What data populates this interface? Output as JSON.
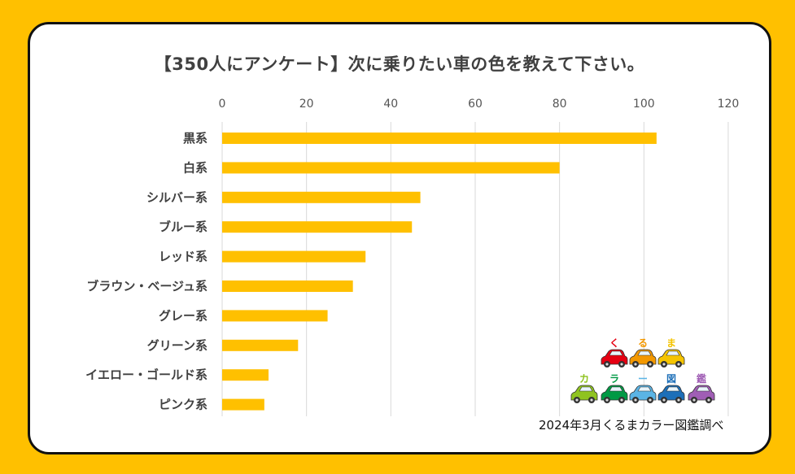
{
  "chart_data": {
    "type": "bar",
    "orientation": "horizontal",
    "title": "【350人にアンケート】次に乗りたい車の色を教えて下さい。",
    "categories": [
      "黒系",
      "白系",
      "シルバー系",
      "ブルー系",
      "レッド系",
      "ブラウン・ベージュ系",
      "グレー系",
      "グリーン系",
      "イエロー・ゴールド系",
      "ピンク系"
    ],
    "values": [
      103,
      80,
      47,
      45,
      34,
      31,
      25,
      18,
      11,
      10
    ],
    "xlim": [
      0,
      120
    ],
    "xticks": [
      0,
      20,
      40,
      60,
      80,
      100,
      120
    ],
    "tick_labels": [
      "0",
      "20",
      "40",
      "60",
      "80",
      "100",
      "120"
    ],
    "xlabel": "",
    "ylabel": "",
    "axis_position": "top",
    "grid": true,
    "bar_color": "#FFC000"
  },
  "logo": {
    "row1": [
      "く",
      "る",
      "ま"
    ],
    "row2": [
      "カ",
      "ラ",
      "ー",
      "図",
      "鑑"
    ],
    "row1_colors": [
      "#E60012",
      "#F39800",
      "#F5C400"
    ],
    "row2_colors": [
      "#8FC31F",
      "#009944",
      "#5BB4E5",
      "#1D6FB8",
      "#A05EB5"
    ]
  },
  "source": "2024年3月くるまカラー図鑑調べ",
  "colors": {
    "background": "#FFC000",
    "panel": "#FFFFFF",
    "grid": "#D9D9D9",
    "bar": "#FFC000"
  }
}
